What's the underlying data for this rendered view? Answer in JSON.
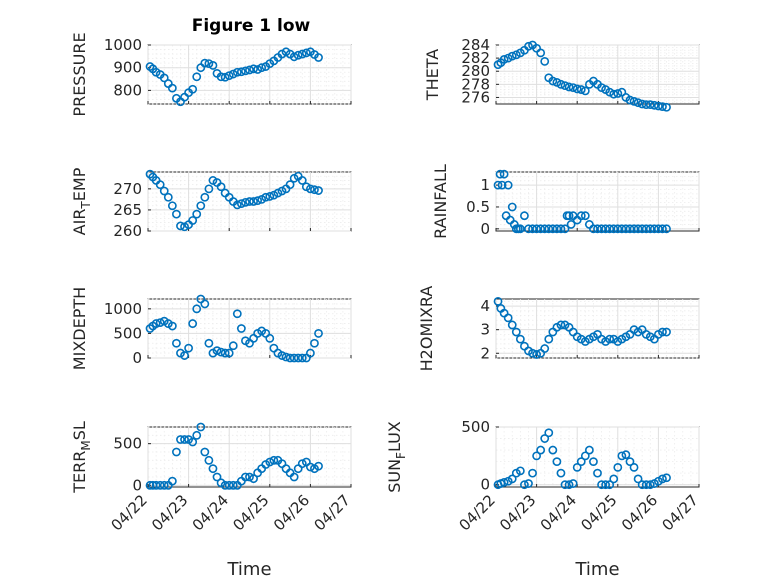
{
  "figure_title": "Figure 1 low",
  "chart_data": [
    {
      "type": "scatter",
      "title": "Figure 1 low",
      "ylabel": "PRESSURE",
      "ylim": [
        740,
        1000
      ],
      "yticks": [
        800,
        900,
        1000
      ],
      "xlim": [
        0,
        5
      ],
      "xticks": [
        "04/22",
        "04/23",
        "04/24",
        "04/25",
        "04/26",
        "04/27"
      ],
      "show_xtick_labels": false,
      "grid": true,
      "color": "#0072bd",
      "x": [
        0.05,
        0.12,
        0.2,
        0.3,
        0.4,
        0.5,
        0.6,
        0.7,
        0.8,
        0.9,
        1.0,
        1.1,
        1.2,
        1.3,
        1.4,
        1.5,
        1.6,
        1.7,
        1.8,
        1.9,
        2.0,
        2.1,
        2.2,
        2.3,
        2.4,
        2.5,
        2.6,
        2.7,
        2.8,
        2.9,
        3.0,
        3.1,
        3.2,
        3.3,
        3.4,
        3.5,
        3.6,
        3.7,
        3.8,
        3.9,
        4.0,
        4.1,
        4.2
      ],
      "y": [
        905,
        895,
        880,
        870,
        855,
        830,
        810,
        765,
        750,
        770,
        790,
        805,
        860,
        900,
        920,
        918,
        910,
        875,
        860,
        858,
        865,
        872,
        880,
        882,
        886,
        890,
        895,
        892,
        900,
        905,
        918,
        930,
        945,
        960,
        970,
        960,
        948,
        955,
        960,
        965,
        970,
        958,
        945
      ]
    },
    {
      "type": "scatter",
      "ylabel": "THETA",
      "ylim": [
        275,
        284
      ],
      "yticks": [
        276,
        278,
        280,
        282,
        284
      ],
      "xlim": [
        0,
        5
      ],
      "xticks": [
        "04/22",
        "04/23",
        "04/24",
        "04/25",
        "04/26",
        "04/27"
      ],
      "show_xtick_labels": false,
      "grid": true,
      "color": "#0072bd",
      "x": [
        0.05,
        0.12,
        0.2,
        0.3,
        0.4,
        0.5,
        0.6,
        0.7,
        0.8,
        0.9,
        1.0,
        1.1,
        1.2,
        1.3,
        1.4,
        1.5,
        1.6,
        1.7,
        1.8,
        1.9,
        2.0,
        2.1,
        2.2,
        2.3,
        2.4,
        2.5,
        2.6,
        2.7,
        2.8,
        2.9,
        3.0,
        3.1,
        3.2,
        3.3,
        3.4,
        3.5,
        3.6,
        3.7,
        3.8,
        3.9,
        4.0,
        4.1,
        4.2
      ],
      "y": [
        281.0,
        281.3,
        281.8,
        282.0,
        282.3,
        282.5,
        282.8,
        283.2,
        283.8,
        284.0,
        283.5,
        282.8,
        281.5,
        279.0,
        278.5,
        278.3,
        278.0,
        277.8,
        277.6,
        277.5,
        277.3,
        277.2,
        277.0,
        278.0,
        278.5,
        278.0,
        277.5,
        277.2,
        276.8,
        276.5,
        276.6,
        276.8,
        276.0,
        275.6,
        275.4,
        275.2,
        275.0,
        274.9,
        274.9,
        274.8,
        274.7,
        274.6,
        274.5
      ]
    },
    {
      "type": "scatter",
      "ylabel": "AIR_TEMP",
      "ylim": [
        260,
        274
      ],
      "yticks": [
        260,
        265,
        270
      ],
      "xlim": [
        0,
        5
      ],
      "xticks": [
        "04/22",
        "04/23",
        "04/24",
        "04/25",
        "04/26",
        "04/27"
      ],
      "show_xtick_labels": false,
      "grid": true,
      "color": "#0072bd",
      "x": [
        0.05,
        0.12,
        0.2,
        0.3,
        0.4,
        0.5,
        0.6,
        0.7,
        0.8,
        0.9,
        1.0,
        1.1,
        1.2,
        1.3,
        1.4,
        1.5,
        1.6,
        1.7,
        1.8,
        1.9,
        2.0,
        2.1,
        2.2,
        2.3,
        2.4,
        2.5,
        2.6,
        2.7,
        2.8,
        2.9,
        3.0,
        3.1,
        3.2,
        3.3,
        3.4,
        3.5,
        3.6,
        3.7,
        3.8,
        3.9,
        4.0,
        4.1,
        4.2
      ],
      "y": [
        273.5,
        272.8,
        272.0,
        271.0,
        269.5,
        268.0,
        266.0,
        264.0,
        261.2,
        261.0,
        261.5,
        262.5,
        264.0,
        266.0,
        268.0,
        270.0,
        272.0,
        271.5,
        270.5,
        269.0,
        268.0,
        267.0,
        266.2,
        266.5,
        266.8,
        267.0,
        267.0,
        267.2,
        267.5,
        268.0,
        268.2,
        268.5,
        269.0,
        269.5,
        270.0,
        271.0,
        272.5,
        273.0,
        272.0,
        270.5,
        270.0,
        269.8,
        269.6
      ]
    },
    {
      "type": "scatter",
      "ylabel": "RAINFALL",
      "ylim": [
        -0.05,
        1.3
      ],
      "yticks": [
        0,
        0.5,
        1
      ],
      "xlim": [
        0,
        5
      ],
      "xticks": [
        "04/22",
        "04/23",
        "04/24",
        "04/25",
        "04/26",
        "04/27"
      ],
      "show_xtick_labels": false,
      "grid": true,
      "color": "#0072bd",
      "x": [
        0.05,
        0.1,
        0.15,
        0.2,
        0.25,
        0.3,
        0.35,
        0.4,
        0.45,
        0.5,
        0.55,
        0.6,
        0.7,
        0.8,
        0.9,
        1.0,
        1.1,
        1.2,
        1.3,
        1.4,
        1.5,
        1.6,
        1.7,
        1.75,
        1.8,
        1.85,
        1.9,
        2.0,
        2.1,
        2.2,
        2.3,
        2.4,
        2.5,
        2.6,
        2.7,
        2.8,
        2.9,
        3.0,
        3.1,
        3.2,
        3.3,
        3.4,
        3.5,
        3.6,
        3.7,
        3.8,
        3.9,
        4.0,
        4.1,
        4.2
      ],
      "y": [
        1.0,
        1.25,
        1.0,
        1.25,
        0.3,
        1.0,
        0.2,
        0.5,
        0.1,
        0,
        0,
        0,
        0.3,
        0,
        0,
        0,
        0,
        0,
        0,
        0,
        0,
        0,
        0,
        0.3,
        0.3,
        0.1,
        0.3,
        0.2,
        0.3,
        0.3,
        0.1,
        0,
        0,
        0,
        0,
        0,
        0,
        0,
        0,
        0,
        0,
        0,
        0,
        0,
        0,
        0,
        0,
        0,
        0,
        0
      ]
    },
    {
      "type": "scatter",
      "ylabel": "MIXDEPTH",
      "ylim": [
        0,
        1200
      ],
      "yticks": [
        0,
        500,
        1000
      ],
      "xlim": [
        0,
        5
      ],
      "xticks": [
        "04/22",
        "04/23",
        "04/24",
        "04/25",
        "04/26",
        "04/27"
      ],
      "show_xtick_labels": false,
      "grid": true,
      "color": "#0072bd",
      "x": [
        0.05,
        0.12,
        0.2,
        0.3,
        0.4,
        0.5,
        0.6,
        0.7,
        0.8,
        0.9,
        1.0,
        1.1,
        1.2,
        1.3,
        1.4,
        1.5,
        1.6,
        1.7,
        1.8,
        1.9,
        2.0,
        2.1,
        2.2,
        2.3,
        2.4,
        2.5,
        2.6,
        2.7,
        2.8,
        2.9,
        3.0,
        3.1,
        3.2,
        3.3,
        3.4,
        3.5,
        3.6,
        3.7,
        3.8,
        3.9,
        4.0,
        4.1,
        4.2
      ],
      "y": [
        600,
        650,
        700,
        720,
        750,
        700,
        650,
        300,
        100,
        50,
        200,
        700,
        1000,
        1200,
        1100,
        300,
        100,
        150,
        120,
        100,
        100,
        250,
        900,
        600,
        350,
        300,
        400,
        500,
        550,
        500,
        400,
        200,
        100,
        50,
        20,
        0,
        0,
        0,
        0,
        0,
        100,
        300,
        500
      ]
    },
    {
      "type": "scatter",
      "ylabel": "H2OMIXRA",
      "ylim": [
        1.8,
        4.3
      ],
      "yticks": [
        2,
        3,
        4
      ],
      "xlim": [
        0,
        5
      ],
      "xticks": [
        "04/22",
        "04/23",
        "04/24",
        "04/25",
        "04/26",
        "04/27"
      ],
      "show_xtick_labels": false,
      "grid": true,
      "color": "#0072bd",
      "x": [
        0.05,
        0.12,
        0.2,
        0.3,
        0.4,
        0.5,
        0.6,
        0.7,
        0.8,
        0.9,
        1.0,
        1.1,
        1.2,
        1.3,
        1.4,
        1.5,
        1.6,
        1.7,
        1.8,
        1.9,
        2.0,
        2.1,
        2.2,
        2.3,
        2.4,
        2.5,
        2.6,
        2.7,
        2.8,
        2.9,
        3.0,
        3.1,
        3.2,
        3.3,
        3.4,
        3.5,
        3.6,
        3.7,
        3.8,
        3.9,
        4.0,
        4.1,
        4.2
      ],
      "y": [
        4.2,
        3.9,
        3.7,
        3.5,
        3.2,
        2.9,
        2.6,
        2.3,
        2.1,
        2.0,
        1.95,
        2.0,
        2.2,
        2.6,
        2.9,
        3.1,
        3.2,
        3.2,
        3.1,
        2.9,
        2.7,
        2.6,
        2.5,
        2.6,
        2.7,
        2.8,
        2.6,
        2.5,
        2.6,
        2.6,
        2.5,
        2.6,
        2.7,
        2.8,
        3.0,
        2.9,
        3.0,
        2.8,
        2.7,
        2.6,
        2.8,
        2.9,
        2.9
      ]
    },
    {
      "type": "scatter",
      "ylabel": "TERR_MSL",
      "ylim": [
        -20,
        700
      ],
      "yticks": [
        0,
        500
      ],
      "xlim": [
        0,
        5
      ],
      "xticks": [
        "04/22",
        "04/23",
        "04/24",
        "04/25",
        "04/26",
        "04/27"
      ],
      "show_xtick_labels": true,
      "xlabel": "Time",
      "grid": true,
      "color": "#0072bd",
      "x": [
        0.05,
        0.12,
        0.2,
        0.3,
        0.4,
        0.5,
        0.6,
        0.7,
        0.8,
        0.9,
        1.0,
        1.1,
        1.2,
        1.3,
        1.4,
        1.5,
        1.6,
        1.7,
        1.8,
        1.9,
        2.0,
        2.1,
        2.2,
        2.3,
        2.4,
        2.5,
        2.6,
        2.7,
        2.8,
        2.9,
        3.0,
        3.1,
        3.2,
        3.3,
        3.4,
        3.5,
        3.6,
        3.7,
        3.8,
        3.9,
        4.0,
        4.1,
        4.2
      ],
      "y": [
        0,
        0,
        0,
        0,
        0,
        0,
        50,
        400,
        550,
        550,
        550,
        520,
        600,
        700,
        400,
        300,
        200,
        100,
        30,
        0,
        0,
        0,
        0,
        50,
        100,
        100,
        80,
        150,
        200,
        250,
        280,
        300,
        300,
        260,
        200,
        150,
        100,
        200,
        260,
        280,
        220,
        200,
        230
      ]
    },
    {
      "type": "scatter",
      "ylabel": "SUN_FLUX",
      "ylim": [
        -20,
        500
      ],
      "yticks": [
        0,
        500
      ],
      "xlim": [
        0,
        5
      ],
      "xticks": [
        "04/22",
        "04/23",
        "04/24",
        "04/25",
        "04/26",
        "04/27"
      ],
      "show_xtick_labels": true,
      "xlabel": "Time",
      "grid": true,
      "color": "#0072bd",
      "x": [
        0.05,
        0.12,
        0.2,
        0.3,
        0.4,
        0.5,
        0.6,
        0.7,
        0.8,
        0.9,
        1.0,
        1.1,
        1.2,
        1.3,
        1.4,
        1.5,
        1.6,
        1.7,
        1.8,
        1.9,
        2.0,
        2.1,
        2.2,
        2.3,
        2.4,
        2.5,
        2.6,
        2.7,
        2.8,
        2.9,
        3.0,
        3.1,
        3.2,
        3.3,
        3.4,
        3.5,
        3.6,
        3.7,
        3.8,
        3.9,
        4.0,
        4.1,
        4.2
      ],
      "y": [
        0,
        10,
        20,
        30,
        50,
        100,
        120,
        0,
        10,
        100,
        250,
        300,
        400,
        450,
        300,
        200,
        100,
        0,
        0,
        10,
        150,
        200,
        250,
        300,
        200,
        100,
        0,
        0,
        0,
        50,
        150,
        250,
        260,
        200,
        150,
        50,
        0,
        0,
        0,
        10,
        30,
        50,
        60
      ]
    }
  ]
}
